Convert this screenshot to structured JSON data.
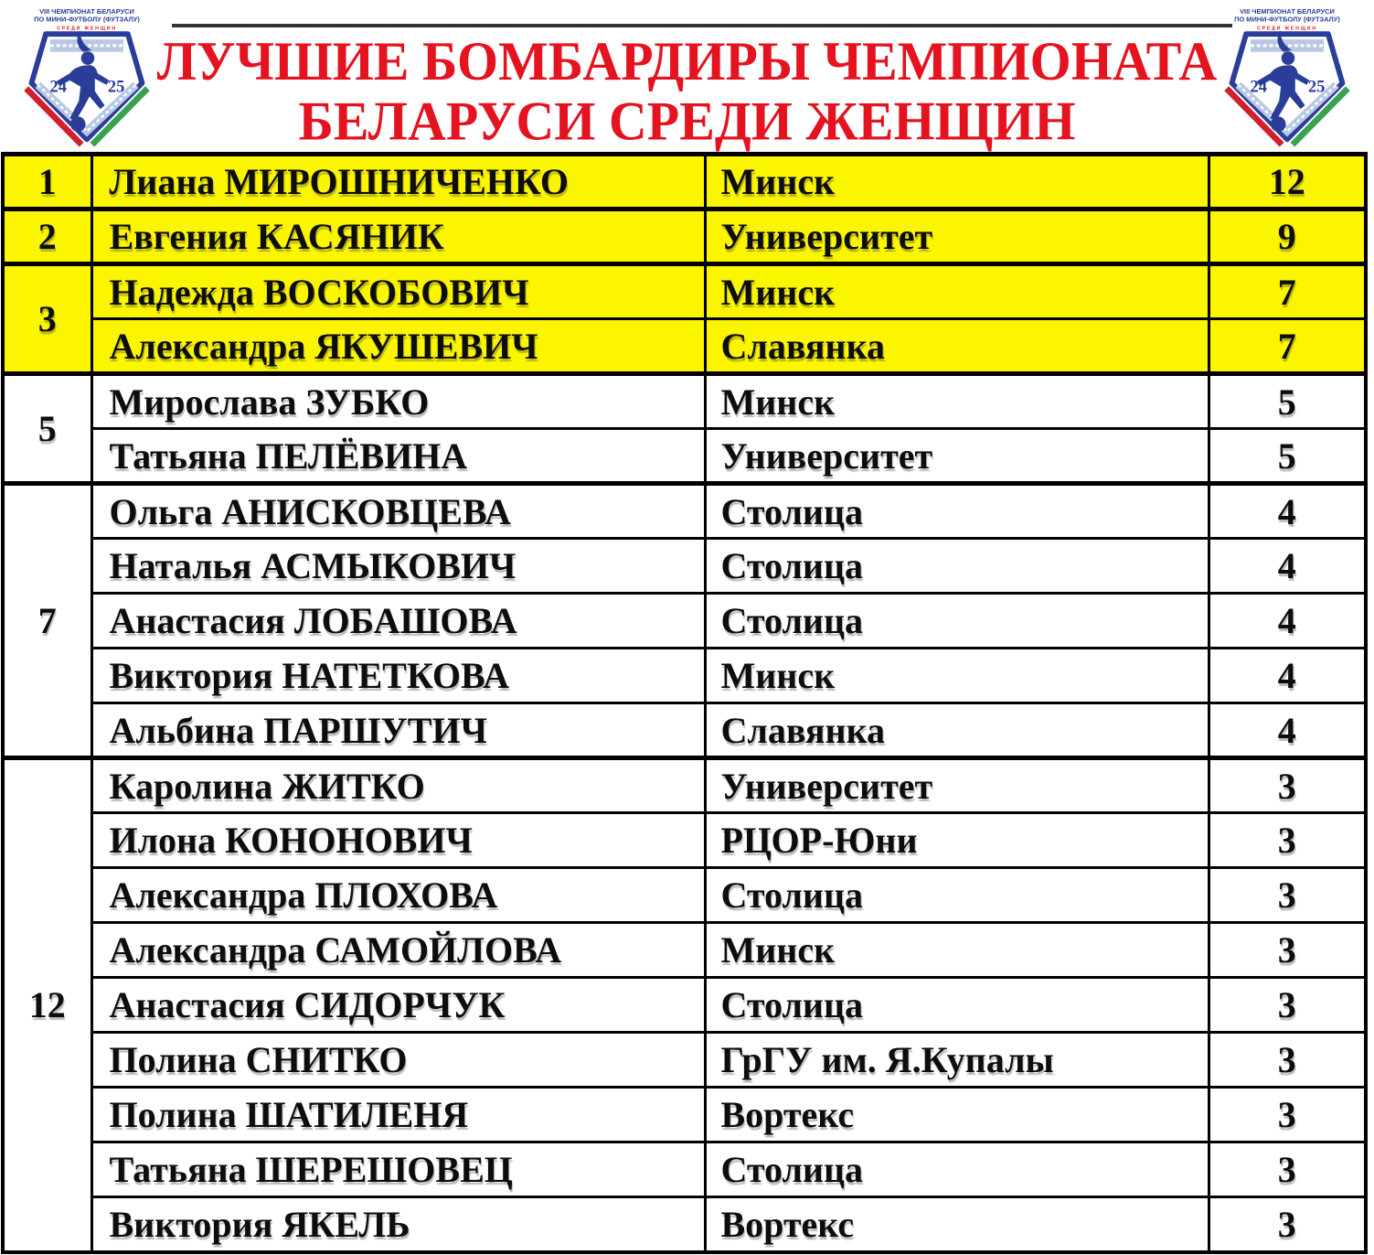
{
  "colors": {
    "title-red": "#e4131f",
    "row-yellow": "#fbf500",
    "logo-blue": "#2a3e99",
    "band-blue": "#b9c8e4",
    "ribbon-red": "#d21f2e",
    "ribbon-green": "#3aa14f",
    "border-black": "#000000",
    "rule-gray": "#333333",
    "text-black": "#0d0d0d"
  },
  "header": {
    "title_line1": "ЛУЧШИЕ БОМБАРДИРЫ ЧЕМПИОНАТА",
    "title_line2": "БЕЛАРУСИ СРЕДИ ЖЕНЩИН"
  },
  "logo": {
    "line1": "VIII ЧЕМПИОНАТ БЕЛАРУСИ",
    "line2": "ПО МИНИ-ФУТБОЛУ (ФУТЗАЛУ)",
    "line3": "СРЕДИ ЖЕНЩИН",
    "year_left": "24",
    "year_right": "25"
  },
  "table": {
    "groups": [
      {
        "rank": "1",
        "highlight": true,
        "rows": [
          {
            "name": "Лиана МИРОШНИЧЕНКО",
            "club": "Минск",
            "goals": "12"
          }
        ]
      },
      {
        "rank": "2",
        "highlight": true,
        "rows": [
          {
            "name": "Евгения КАСЯНИК",
            "club": "Университет",
            "goals": "9"
          }
        ]
      },
      {
        "rank": "3",
        "highlight": true,
        "rows": [
          {
            "name": "Надежда ВОСКОБОВИЧ",
            "club": "Минск",
            "goals": "7"
          },
          {
            "name": "Александра ЯКУШЕВИЧ",
            "club": "Славянка",
            "goals": "7"
          }
        ]
      },
      {
        "rank": "5",
        "highlight": false,
        "rows": [
          {
            "name": "Мирослава ЗУБКО",
            "club": "Минск",
            "goals": "5"
          },
          {
            "name": "Татьяна ПЕЛЁВИНА",
            "club": "Университет",
            "goals": "5"
          }
        ]
      },
      {
        "rank": "7",
        "highlight": false,
        "rows": [
          {
            "name": "Ольга АНИСКОВЦЕВА",
            "club": "Столица",
            "goals": "4"
          },
          {
            "name": "Наталья АСМЫКОВИЧ",
            "club": "Столица",
            "goals": "4"
          },
          {
            "name": "Анастасия ЛОБАШОВА",
            "club": "Столица",
            "goals": "4"
          },
          {
            "name": "Виктория НАТЕТКОВА",
            "club": "Минск",
            "goals": "4"
          },
          {
            "name": "Альбина ПАРШУТИЧ",
            "club": "Славянка",
            "goals": "4"
          }
        ]
      },
      {
        "rank": "12",
        "highlight": false,
        "rows": [
          {
            "name": "Каролина ЖИТКО",
            "club": "Университет",
            "goals": "3"
          },
          {
            "name": "Илона КОНОНОВИЧ",
            "club": "РЦОР-Юни",
            "goals": "3"
          },
          {
            "name": "Александра ПЛОХОВА",
            "club": "Столица",
            "goals": "3"
          },
          {
            "name": "Александра САМОЙЛОВА",
            "club": "Минск",
            "goals": "3"
          },
          {
            "name": "Анастасия СИДОРЧУК",
            "club": "Столица",
            "goals": "3"
          },
          {
            "name": "Полина СНИТКО",
            "club": "ГрГУ им. Я.Купалы",
            "goals": "3"
          },
          {
            "name": "Полина ШАТИЛЕНЯ",
            "club": "Вортекс",
            "goals": "3"
          },
          {
            "name": "Татьяна ШЕРЕШОВЕЦ",
            "club": "Столица",
            "goals": "3"
          },
          {
            "name": "Виктория ЯКЕЛЬ",
            "club": "Вортекс",
            "goals": "3"
          }
        ]
      }
    ]
  }
}
